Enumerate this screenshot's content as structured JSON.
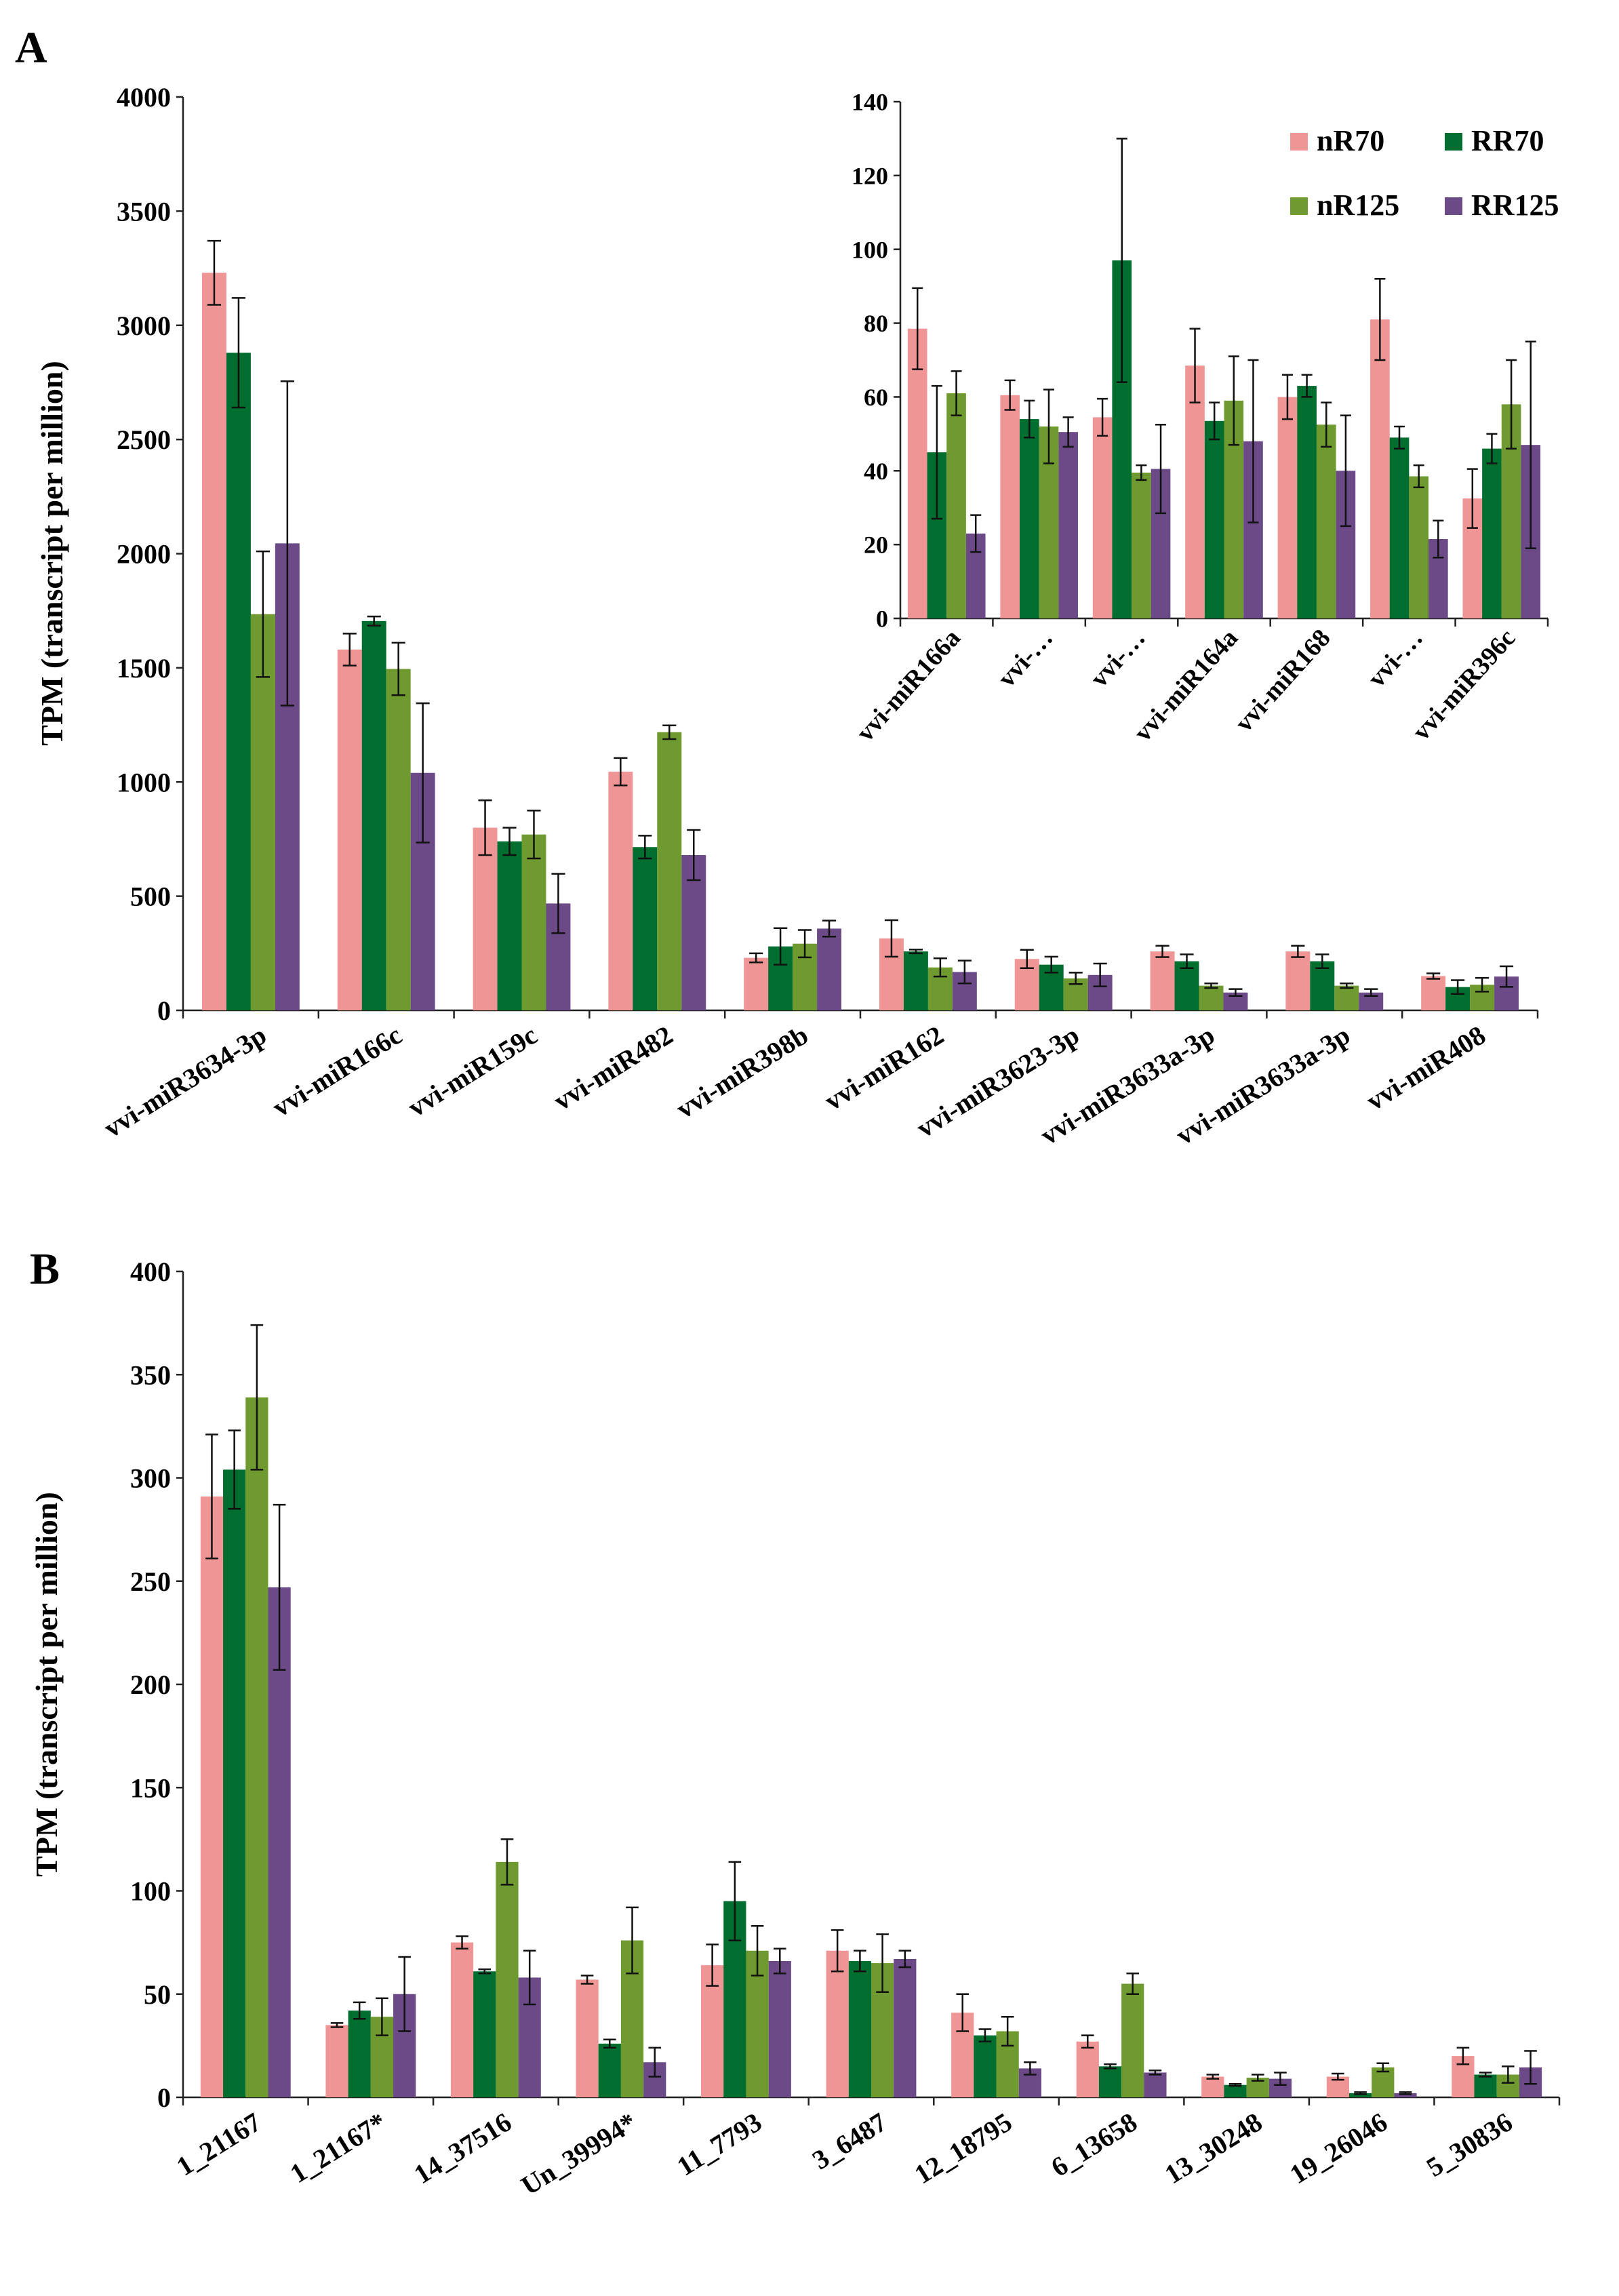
{
  "figure": {
    "panel_a_label": "A",
    "panel_b_label": "B"
  },
  "legend": {
    "items": [
      {
        "name": "nR70",
        "color": "#f09595"
      },
      {
        "name": "RR70",
        "color": "#006e2e"
      },
      {
        "name": "nR125",
        "color": "#6e9a30"
      },
      {
        "name": "RR125",
        "color": "#6c4a88"
      }
    ]
  },
  "chart_data": [
    {
      "id": "A-main",
      "type": "bar",
      "title": "",
      "ylabel": "TPM (transcript per million)",
      "xlabel": "",
      "ylim": [
        0,
        4000
      ],
      "yticks": [
        0,
        500,
        1000,
        1500,
        2000,
        2500,
        3000,
        3500,
        4000
      ],
      "categories": [
        "vvi-miR3634-3p",
        "vvi-miR166c",
        "vvi-miR159c",
        "vvi-miR482",
        "vvi-miR398b",
        "vvi-miR162",
        "vvi-miR3623-3p",
        "vvi-miR3633a-3p",
        "vvi-miR3633a-3p",
        "vvi-miR408"
      ],
      "series": [
        {
          "name": "nR70",
          "values": [
            3230,
            1580,
            800,
            1045,
            230,
            315,
            225,
            258,
            258,
            150
          ],
          "errors": [
            140,
            70,
            120,
            60,
            20,
            80,
            40,
            25,
            25,
            12
          ]
        },
        {
          "name": "RR70",
          "values": [
            2880,
            1705,
            740,
            715,
            280,
            258,
            200,
            215,
            215,
            102
          ],
          "errors": [
            240,
            20,
            60,
            50,
            80,
            8,
            35,
            30,
            30,
            30
          ]
        },
        {
          "name": "nR125",
          "values": [
            1735,
            1495,
            770,
            1218,
            292,
            188,
            140,
            108,
            108,
            112
          ],
          "errors": [
            275,
            115,
            105,
            30,
            60,
            40,
            25,
            10,
            10,
            30
          ]
        },
        {
          "name": "RR125",
          "values": [
            2045,
            1040,
            468,
            680,
            358,
            168,
            155,
            78,
            78,
            148
          ],
          "errors": [
            710,
            305,
            130,
            110,
            35,
            50,
            50,
            15,
            15,
            45
          ]
        }
      ]
    },
    {
      "id": "A-inset",
      "type": "bar",
      "title": "",
      "ylabel": "",
      "xlabel": "",
      "ylim": [
        0,
        140
      ],
      "yticks": [
        0,
        20,
        40,
        60,
        80,
        100,
        120,
        140
      ],
      "categories": [
        "vvi-miR166a",
        "vvi-…",
        "vvi-…",
        "vvi-miR164a",
        "vvi-miR168",
        "vvi-…",
        "vvi-miR396c"
      ],
      "series": [
        {
          "name": "nR70",
          "values": [
            78.5,
            60.5,
            54.5,
            68.5,
            60,
            81,
            32.5
          ],
          "errors": [
            11,
            4,
            5,
            10,
            6,
            11,
            8
          ]
        },
        {
          "name": "RR70",
          "values": [
            45,
            54,
            97,
            53.5,
            63,
            49,
            46
          ],
          "errors": [
            18,
            5,
            33,
            5,
            3,
            3,
            4
          ]
        },
        {
          "name": "nR125",
          "values": [
            61,
            52,
            39.5,
            59,
            52.5,
            38.5,
            58
          ],
          "errors": [
            6,
            10,
            2,
            12,
            6,
            3,
            12
          ]
        },
        {
          "name": "RR125",
          "values": [
            23,
            50.5,
            40.5,
            48,
            40,
            21.5,
            47
          ],
          "errors": [
            5,
            4,
            12,
            22,
            15,
            5,
            28
          ]
        }
      ]
    },
    {
      "id": "B",
      "type": "bar",
      "title": "",
      "ylabel": "TPM (transcript per million)",
      "xlabel": "",
      "ylim": [
        0,
        400
      ],
      "yticks": [
        0,
        50,
        100,
        150,
        200,
        250,
        300,
        350,
        400
      ],
      "categories": [
        "1_21167",
        "1_21167*",
        "14_37516",
        "Un_39994*",
        "11_7793",
        "3_6487",
        "12_18795",
        "6_13658",
        "13_30248",
        "19_26046",
        "5_30836"
      ],
      "series": [
        {
          "name": "nR70",
          "values": [
            291,
            35,
            75,
            57,
            64,
            71,
            41,
            27,
            10,
            10,
            20
          ],
          "errors": [
            30,
            1,
            3,
            2,
            10,
            10,
            9,
            3,
            1,
            1.5,
            4
          ]
        },
        {
          "name": "RR70",
          "values": [
            304,
            42,
            61,
            26,
            95,
            66,
            30,
            15,
            6,
            2,
            11
          ],
          "errors": [
            19,
            4,
            1,
            2,
            19,
            5,
            3,
            1,
            0.5,
            0.5,
            1
          ]
        },
        {
          "name": "nR125",
          "values": [
            339,
            39,
            114,
            76,
            71,
            65,
            32,
            55,
            9.5,
            14.5,
            11
          ],
          "errors": [
            35,
            9,
            11,
            16,
            12,
            14,
            7,
            5,
            1.5,
            2,
            4
          ]
        },
        {
          "name": "RR125",
          "values": [
            247,
            50,
            58,
            17,
            66,
            67,
            14,
            12,
            9,
            2,
            14.5
          ],
          "errors": [
            40,
            18,
            13,
            7,
            6,
            4,
            3,
            1,
            3,
            0.5,
            8
          ]
        }
      ]
    }
  ]
}
